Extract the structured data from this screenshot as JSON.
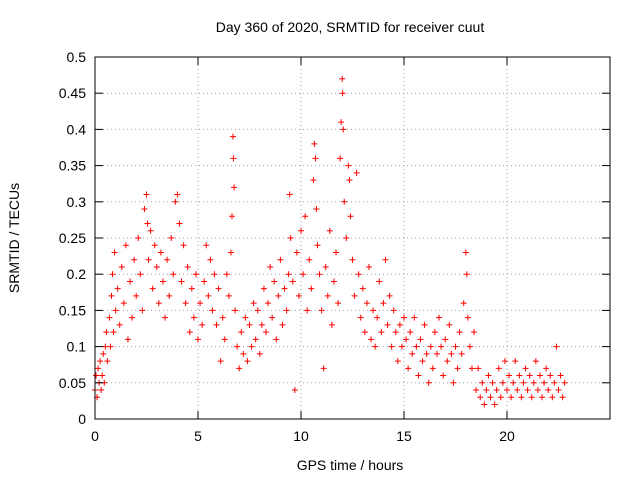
{
  "chart_data": {
    "type": "scatter",
    "title": "Day 360 of 2020, SRMTID for receiver cuut",
    "xlabel": "GPS time / hours",
    "ylabel": "SRMTID / TECUs",
    "xlim": [
      0,
      25
    ],
    "ylim": [
      0,
      0.5
    ],
    "xticks": [
      0,
      5,
      10,
      15,
      20
    ],
    "yticks": [
      0,
      0.05,
      0.1,
      0.15,
      0.2,
      0.25,
      0.3,
      0.35,
      0.4,
      0.45,
      0.5
    ],
    "xtick_labels": [
      "0",
      "5",
      "10",
      "15",
      "20"
    ],
    "ytick_labels": [
      "0",
      "0.05",
      "0.1",
      "0.15",
      "0.2",
      "0.25",
      "0.3",
      "0.35",
      "0.4",
      "0.45",
      "0.5"
    ],
    "grid": true,
    "marker": "+",
    "color": "#ff0000",
    "series": [
      {
        "name": "SRMTID",
        "points": [
          [
            0.0,
            0.04
          ],
          [
            0.05,
            0.06
          ],
          [
            0.1,
            0.03
          ],
          [
            0.15,
            0.07
          ],
          [
            0.2,
            0.05
          ],
          [
            0.25,
            0.08
          ],
          [
            0.3,
            0.04
          ],
          [
            0.35,
            0.06
          ],
          [
            0.4,
            0.09
          ],
          [
            0.45,
            0.05
          ],
          [
            0.5,
            0.1
          ],
          [
            0.55,
            0.12
          ],
          [
            0.6,
            0.08
          ],
          [
            0.7,
            0.14
          ],
          [
            0.75,
            0.1
          ],
          [
            0.8,
            0.17
          ],
          [
            0.85,
            0.2
          ],
          [
            0.9,
            0.12
          ],
          [
            0.95,
            0.23
          ],
          [
            1.0,
            0.15
          ],
          [
            1.1,
            0.18
          ],
          [
            1.2,
            0.13
          ],
          [
            1.3,
            0.21
          ],
          [
            1.4,
            0.16
          ],
          [
            1.5,
            0.24
          ],
          [
            1.6,
            0.11
          ],
          [
            1.7,
            0.19
          ],
          [
            1.8,
            0.14
          ],
          [
            1.9,
            0.22
          ],
          [
            2.0,
            0.17
          ],
          [
            2.1,
            0.25
          ],
          [
            2.2,
            0.2
          ],
          [
            2.3,
            0.15
          ],
          [
            2.4,
            0.29
          ],
          [
            2.5,
            0.31
          ],
          [
            2.55,
            0.27
          ],
          [
            2.6,
            0.22
          ],
          [
            2.7,
            0.26
          ],
          [
            2.8,
            0.18
          ],
          [
            2.9,
            0.24
          ],
          [
            3.0,
            0.21
          ],
          [
            3.1,
            0.16
          ],
          [
            3.2,
            0.23
          ],
          [
            3.3,
            0.19
          ],
          [
            3.4,
            0.14
          ],
          [
            3.5,
            0.22
          ],
          [
            3.6,
            0.17
          ],
          [
            3.7,
            0.25
          ],
          [
            3.8,
            0.2
          ],
          [
            3.9,
            0.3
          ],
          [
            4.0,
            0.31
          ],
          [
            4.1,
            0.27
          ],
          [
            4.2,
            0.19
          ],
          [
            4.3,
            0.24
          ],
          [
            4.4,
            0.16
          ],
          [
            4.5,
            0.21
          ],
          [
            4.6,
            0.12
          ],
          [
            4.7,
            0.18
          ],
          [
            4.8,
            0.14
          ],
          [
            4.9,
            0.2
          ],
          [
            5.0,
            0.11
          ],
          [
            5.1,
            0.16
          ],
          [
            5.2,
            0.13
          ],
          [
            5.3,
            0.19
          ],
          [
            5.4,
            0.24
          ],
          [
            5.5,
            0.17
          ],
          [
            5.6,
            0.22
          ],
          [
            5.7,
            0.15
          ],
          [
            5.8,
            0.2
          ],
          [
            5.9,
            0.13
          ],
          [
            6.0,
            0.18
          ],
          [
            6.1,
            0.08
          ],
          [
            6.2,
            0.14
          ],
          [
            6.3,
            0.11
          ],
          [
            6.4,
            0.2
          ],
          [
            6.5,
            0.17
          ],
          [
            6.6,
            0.23
          ],
          [
            6.65,
            0.28
          ],
          [
            6.7,
            0.39
          ],
          [
            6.72,
            0.36
          ],
          [
            6.75,
            0.32
          ],
          [
            6.8,
            0.15
          ],
          [
            6.9,
            0.1
          ],
          [
            7.0,
            0.07
          ],
          [
            7.1,
            0.12
          ],
          [
            7.2,
            0.09
          ],
          [
            7.3,
            0.14
          ],
          [
            7.4,
            0.08
          ],
          [
            7.5,
            0.13
          ],
          [
            7.6,
            0.1
          ],
          [
            7.7,
            0.16
          ],
          [
            7.8,
            0.11
          ],
          [
            7.9,
            0.15
          ],
          [
            8.0,
            0.09
          ],
          [
            8.1,
            0.13
          ],
          [
            8.2,
            0.18
          ],
          [
            8.3,
            0.12
          ],
          [
            8.4,
            0.16
          ],
          [
            8.5,
            0.21
          ],
          [
            8.6,
            0.14
          ],
          [
            8.7,
            0.19
          ],
          [
            8.8,
            0.11
          ],
          [
            8.9,
            0.17
          ],
          [
            9.0,
            0.22
          ],
          [
            9.1,
            0.13
          ],
          [
            9.2,
            0.18
          ],
          [
            9.3,
            0.15
          ],
          [
            9.4,
            0.2
          ],
          [
            9.45,
            0.31
          ],
          [
            9.5,
            0.25
          ],
          [
            9.6,
            0.19
          ],
          [
            9.7,
            0.04
          ],
          [
            9.8,
            0.23
          ],
          [
            9.9,
            0.17
          ],
          [
            10.0,
            0.26
          ],
          [
            10.1,
            0.2
          ],
          [
            10.2,
            0.28
          ],
          [
            10.3,
            0.15
          ],
          [
            10.4,
            0.22
          ],
          [
            10.5,
            0.18
          ],
          [
            10.6,
            0.33
          ],
          [
            10.65,
            0.38
          ],
          [
            10.7,
            0.36
          ],
          [
            10.75,
            0.29
          ],
          [
            10.8,
            0.24
          ],
          [
            10.9,
            0.2
          ],
          [
            11.0,
            0.15
          ],
          [
            11.1,
            0.07
          ],
          [
            11.2,
            0.21
          ],
          [
            11.3,
            0.17
          ],
          [
            11.4,
            0.26
          ],
          [
            11.5,
            0.13
          ],
          [
            11.6,
            0.19
          ],
          [
            11.7,
            0.23
          ],
          [
            11.8,
            0.16
          ],
          [
            11.9,
            0.36
          ],
          [
            11.95,
            0.41
          ],
          [
            12.0,
            0.47
          ],
          [
            12.02,
            0.45
          ],
          [
            12.05,
            0.4
          ],
          [
            12.1,
            0.3
          ],
          [
            12.2,
            0.25
          ],
          [
            12.3,
            0.35
          ],
          [
            12.35,
            0.33
          ],
          [
            12.4,
            0.28
          ],
          [
            12.5,
            0.22
          ],
          [
            12.6,
            0.17
          ],
          [
            12.7,
            0.34
          ],
          [
            12.8,
            0.2
          ],
          [
            12.9,
            0.14
          ],
          [
            13.0,
            0.18
          ],
          [
            13.1,
            0.12
          ],
          [
            13.2,
            0.16
          ],
          [
            13.3,
            0.21
          ],
          [
            13.4,
            0.11
          ],
          [
            13.5,
            0.15
          ],
          [
            13.6,
            0.1
          ],
          [
            13.7,
            0.14
          ],
          [
            13.8,
            0.19
          ],
          [
            13.9,
            0.12
          ],
          [
            14.0,
            0.16
          ],
          [
            14.1,
            0.22
          ],
          [
            14.2,
            0.13
          ],
          [
            14.3,
            0.17
          ],
          [
            14.4,
            0.1
          ],
          [
            14.5,
            0.15
          ],
          [
            14.6,
            0.12
          ],
          [
            14.7,
            0.08
          ],
          [
            14.8,
            0.13
          ],
          [
            14.9,
            0.1
          ],
          [
            15.0,
            0.14
          ],
          [
            15.1,
            0.11
          ],
          [
            15.2,
            0.07
          ],
          [
            15.3,
            0.12
          ],
          [
            15.4,
            0.09
          ],
          [
            15.5,
            0.14
          ],
          [
            15.6,
            0.1
          ],
          [
            15.7,
            0.06
          ],
          [
            15.8,
            0.11
          ],
          [
            15.9,
            0.08
          ],
          [
            16.0,
            0.13
          ],
          [
            16.1,
            0.09
          ],
          [
            16.2,
            0.05
          ],
          [
            16.3,
            0.1
          ],
          [
            16.4,
            0.07
          ],
          [
            16.5,
            0.12
          ],
          [
            16.6,
            0.09
          ],
          [
            16.7,
            0.14
          ],
          [
            16.8,
            0.1
          ],
          [
            16.9,
            0.06
          ],
          [
            17.0,
            0.11
          ],
          [
            17.1,
            0.08
          ],
          [
            17.2,
            0.13
          ],
          [
            17.3,
            0.09
          ],
          [
            17.4,
            0.05
          ],
          [
            17.5,
            0.1
          ],
          [
            17.6,
            0.07
          ],
          [
            17.7,
            0.12
          ],
          [
            17.8,
            0.09
          ],
          [
            17.9,
            0.16
          ],
          [
            18.0,
            0.23
          ],
          [
            18.05,
            0.2
          ],
          [
            18.1,
            0.14
          ],
          [
            18.2,
            0.1
          ],
          [
            18.3,
            0.07
          ],
          [
            18.4,
            0.12
          ],
          [
            18.5,
            0.04
          ],
          [
            18.6,
            0.07
          ],
          [
            18.7,
            0.03
          ],
          [
            18.8,
            0.05
          ],
          [
            18.9,
            0.02
          ],
          [
            19.0,
            0.04
          ],
          [
            19.1,
            0.06
          ],
          [
            19.2,
            0.03
          ],
          [
            19.3,
            0.05
          ],
          [
            19.4,
            0.02
          ],
          [
            19.5,
            0.04
          ],
          [
            19.6,
            0.07
          ],
          [
            19.7,
            0.03
          ],
          [
            19.8,
            0.05
          ],
          [
            19.9,
            0.08
          ],
          [
            20.0,
            0.04
          ],
          [
            20.1,
            0.06
          ],
          [
            20.2,
            0.03
          ],
          [
            20.3,
            0.05
          ],
          [
            20.4,
            0.08
          ],
          [
            20.5,
            0.04
          ],
          [
            20.6,
            0.06
          ],
          [
            20.7,
            0.03
          ],
          [
            20.8,
            0.05
          ],
          [
            20.9,
            0.07
          ],
          [
            21.0,
            0.04
          ],
          [
            21.1,
            0.06
          ],
          [
            21.2,
            0.03
          ],
          [
            21.3,
            0.05
          ],
          [
            21.4,
            0.08
          ],
          [
            21.5,
            0.04
          ],
          [
            21.6,
            0.06
          ],
          [
            21.7,
            0.03
          ],
          [
            21.8,
            0.05
          ],
          [
            21.9,
            0.07
          ],
          [
            22.0,
            0.04
          ],
          [
            22.1,
            0.06
          ],
          [
            22.2,
            0.03
          ],
          [
            22.3,
            0.05
          ],
          [
            22.4,
            0.1
          ],
          [
            22.5,
            0.04
          ],
          [
            22.6,
            0.06
          ],
          [
            22.7,
            0.03
          ],
          [
            22.8,
            0.05
          ]
        ]
      }
    ]
  }
}
